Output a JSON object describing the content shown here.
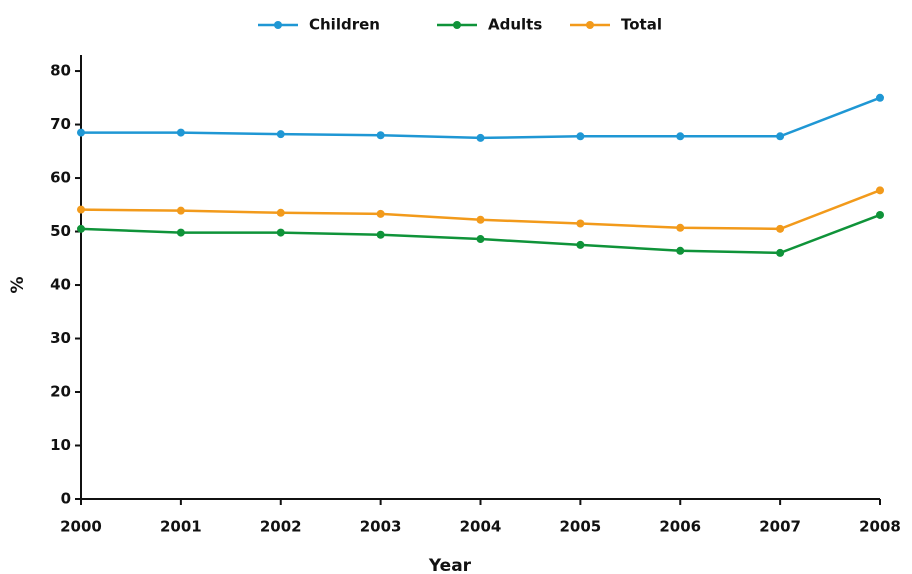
{
  "chart_data": {
    "type": "line",
    "x": [
      2000,
      2001,
      2002,
      2003,
      2004,
      2005,
      2006,
      2007,
      2008
    ],
    "series": [
      {
        "name": "Children",
        "color": "#1f97d4",
        "values": [
          68.5,
          68.5,
          68.2,
          68.0,
          67.5,
          67.8,
          67.8,
          67.8,
          75.0
        ]
      },
      {
        "name": "Adults",
        "color": "#0f9339",
        "values": [
          50.5,
          49.8,
          49.8,
          49.4,
          48.6,
          47.5,
          46.4,
          46.0,
          53.1
        ]
      },
      {
        "name": "Total",
        "color": "#f29a1b",
        "values": [
          54.1,
          53.9,
          53.5,
          53.3,
          52.2,
          51.5,
          50.7,
          50.5,
          57.7
        ]
      }
    ],
    "xlim": [
      2000,
      2008
    ],
    "xticks": [
      2000,
      2001,
      2002,
      2003,
      2004,
      2005,
      2006,
      2007,
      2008
    ],
    "ylim": [
      0,
      83
    ],
    "yticks": [
      0,
      10,
      20,
      30,
      40,
      50,
      60,
      70,
      80
    ],
    "x_label": "Year",
    "y_label": "%",
    "grid": false,
    "legend": "top"
  }
}
